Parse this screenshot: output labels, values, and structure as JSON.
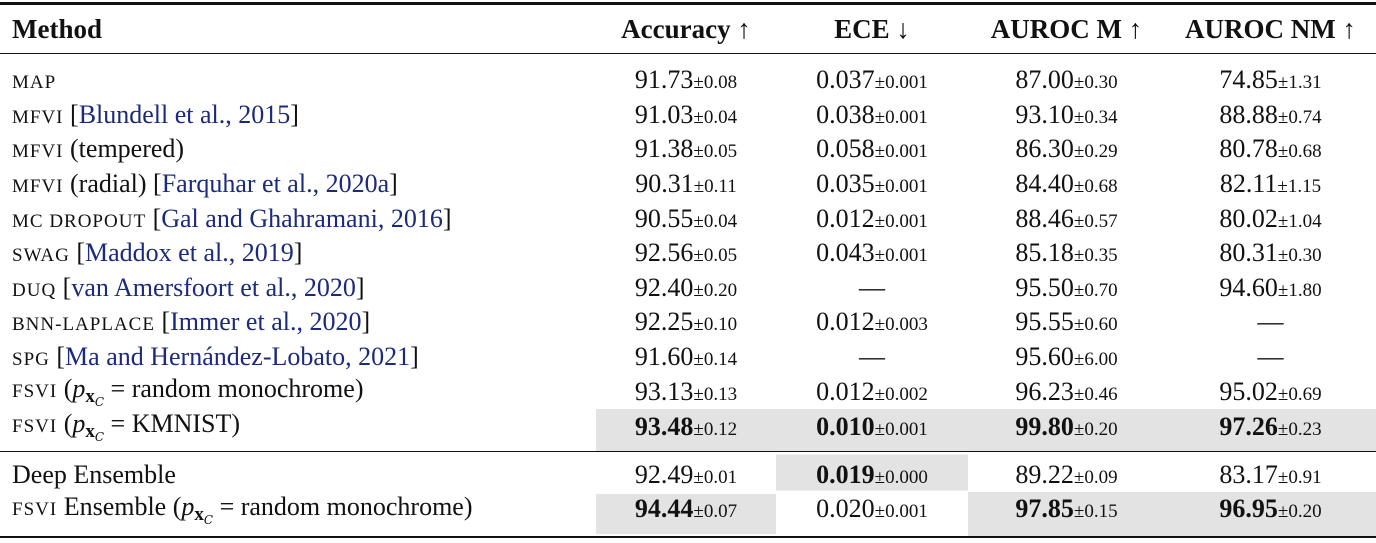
{
  "table": {
    "header": [
      "Method",
      "Accuracy ↑",
      "ECE ↓",
      "AUROC M ↑",
      "AUROC NM ↑"
    ],
    "sections": [
      {
        "rows": [
          {
            "method": [
              {
                "text": "MAP",
                "style": "sc"
              }
            ],
            "cells": [
              {
                "value": "91.73",
                "std": "±0.08"
              },
              {
                "value": "0.037",
                "std": "±0.001"
              },
              {
                "value": "87.00",
                "std": "±0.30"
              },
              {
                "value": "74.85",
                "std": "±1.31"
              }
            ]
          },
          {
            "method": [
              {
                "text": "MFVI",
                "style": "sc"
              },
              {
                "text": " [",
                "style": "plain"
              },
              {
                "text": "Blundell et al., 2015",
                "style": "cite"
              },
              {
                "text": "]",
                "style": "plain"
              }
            ],
            "cells": [
              {
                "value": "91.03",
                "std": "±0.04"
              },
              {
                "value": "0.038",
                "std": "±0.001"
              },
              {
                "value": "93.10",
                "std": "±0.34"
              },
              {
                "value": "88.88",
                "std": "±0.74"
              }
            ]
          },
          {
            "method": [
              {
                "text": "MFVI",
                "style": "sc"
              },
              {
                "text": " (tempered)",
                "style": "plain"
              }
            ],
            "cells": [
              {
                "value": "91.38",
                "std": "±0.05"
              },
              {
                "value": "0.058",
                "std": "±0.001"
              },
              {
                "value": "86.30",
                "std": "±0.29"
              },
              {
                "value": "80.78",
                "std": "±0.68"
              }
            ]
          },
          {
            "method": [
              {
                "text": "MFVI",
                "style": "sc"
              },
              {
                "text": " (radial) [",
                "style": "plain"
              },
              {
                "text": "Farquhar et al., 2020a",
                "style": "cite"
              },
              {
                "text": "]",
                "style": "plain"
              }
            ],
            "cells": [
              {
                "value": "90.31",
                "std": "±0.11"
              },
              {
                "value": "0.035",
                "std": "±0.001"
              },
              {
                "value": "84.40",
                "std": "±0.68"
              },
              {
                "value": "82.11",
                "std": "±1.15"
              }
            ]
          },
          {
            "method": [
              {
                "text": "MC DROPOUT",
                "style": "sc"
              },
              {
                "text": " [",
                "style": "plain"
              },
              {
                "text": "Gal and Ghahramani, 2016",
                "style": "cite"
              },
              {
                "text": "]",
                "style": "plain"
              }
            ],
            "cells": [
              {
                "value": "90.55",
                "std": "±0.04"
              },
              {
                "value": "0.012",
                "std": "±0.001"
              },
              {
                "value": "88.46",
                "std": "±0.57"
              },
              {
                "value": "80.02",
                "std": "±1.04"
              }
            ]
          },
          {
            "method": [
              {
                "text": "SWAG",
                "style": "sc"
              },
              {
                "text": " [",
                "style": "plain"
              },
              {
                "text": "Maddox et al., 2019",
                "style": "cite"
              },
              {
                "text": "]",
                "style": "plain"
              }
            ],
            "cells": [
              {
                "value": "92.56",
                "std": "±0.05"
              },
              {
                "value": "0.043",
                "std": "±0.001"
              },
              {
                "value": "85.18",
                "std": "±0.35"
              },
              {
                "value": "80.31",
                "std": "±0.30"
              }
            ]
          },
          {
            "method": [
              {
                "text": "DUQ",
                "style": "sc"
              },
              {
                "text": " [",
                "style": "plain"
              },
              {
                "text": "van Amersfoort et al., 2020",
                "style": "cite"
              },
              {
                "text": "]",
                "style": "plain"
              }
            ],
            "cells": [
              {
                "value": "92.40",
                "std": "±0.20"
              },
              {
                "value": "—"
              },
              {
                "value": "95.50",
                "std": "±0.70"
              },
              {
                "value": "94.60",
                "std": "±1.80"
              }
            ]
          },
          {
            "method": [
              {
                "text": "BNN-LAPLACE",
                "style": "sc"
              },
              {
                "text": " [",
                "style": "plain"
              },
              {
                "text": "Immer et al., 2020",
                "style": "cite"
              },
              {
                "text": "]",
                "style": "plain"
              }
            ],
            "cells": [
              {
                "value": "92.25",
                "std": "±0.10"
              },
              {
                "value": "0.012",
                "std": "±0.003"
              },
              {
                "value": "95.55",
                "std": "±0.60"
              },
              {
                "value": "—"
              }
            ]
          },
          {
            "method": [
              {
                "text": "SPG",
                "style": "sc"
              },
              {
                "text": " [",
                "style": "plain"
              },
              {
                "text": "Ma and Hernández-Lobato, 2021",
                "style": "cite"
              },
              {
                "text": "]",
                "style": "plain"
              }
            ],
            "cells": [
              {
                "value": "91.60",
                "std": "±0.14"
              },
              {
                "value": "—"
              },
              {
                "value": "95.60",
                "std": "±6.00"
              },
              {
                "value": "—"
              }
            ]
          },
          {
            "method": [
              {
                "text": "FSVI",
                "style": "sc"
              },
              {
                "text": " (",
                "style": "plain"
              },
              {
                "text": "p",
                "style": "math"
              },
              {
                "text": "x",
                "style": "sub"
              },
              {
                "text": "C",
                "style": "subsub"
              },
              {
                "text": " = random monochrome)",
                "style": "plain"
              }
            ],
            "cells": [
              {
                "value": "93.13",
                "std": "±0.13"
              },
              {
                "value": "0.012",
                "std": "±0.002"
              },
              {
                "value": "96.23",
                "std": "±0.46"
              },
              {
                "value": "95.02",
                "std": "±0.69"
              }
            ]
          },
          {
            "method": [
              {
                "text": "FSVI",
                "style": "sc"
              },
              {
                "text": " (",
                "style": "plain"
              },
              {
                "text": "p",
                "style": "math"
              },
              {
                "text": "x",
                "style": "sub"
              },
              {
                "text": "C",
                "style": "subsub"
              },
              {
                "text": " = KMNIST)",
                "style": "plain"
              }
            ],
            "cells": [
              {
                "value": "93.48",
                "std": "±0.12",
                "bold": true,
                "highlight": true
              },
              {
                "value": "0.010",
                "std": "±0.001",
                "bold": true,
                "highlight": true
              },
              {
                "value": "99.80",
                "std": "±0.20",
                "bold": true,
                "highlight": true
              },
              {
                "value": "97.26",
                "std": "±0.23",
                "bold": true,
                "highlight": true
              }
            ]
          }
        ]
      },
      {
        "rows": [
          {
            "method": [
              {
                "text": "Deep Ensemble",
                "style": "plain"
              }
            ],
            "cells": [
              {
                "value": "92.49",
                "std": "±0.01"
              },
              {
                "value": "0.019",
                "std": "±0.000",
                "bold": true,
                "highlight": true
              },
              {
                "value": "89.22",
                "std": "±0.09"
              },
              {
                "value": "83.17",
                "std": "±0.91"
              }
            ]
          },
          {
            "method": [
              {
                "text": "FSVI",
                "style": "sc"
              },
              {
                "text": " Ensemble (",
                "style": "plain"
              },
              {
                "text": "p",
                "style": "math"
              },
              {
                "text": "x",
                "style": "sub"
              },
              {
                "text": "C",
                "style": "subsub"
              },
              {
                "text": " = random monochrome)",
                "style": "plain"
              }
            ],
            "cells": [
              {
                "value": "94.44",
                "std": "±0.07",
                "bold": true,
                "highlight": true
              },
              {
                "value": "0.020",
                "std": "±0.001"
              },
              {
                "value": "97.85",
                "std": "±0.15",
                "bold": true,
                "highlight": true
              },
              {
                "value": "96.95",
                "std": "±0.20",
                "bold": true,
                "highlight": true
              }
            ]
          }
        ]
      }
    ]
  }
}
